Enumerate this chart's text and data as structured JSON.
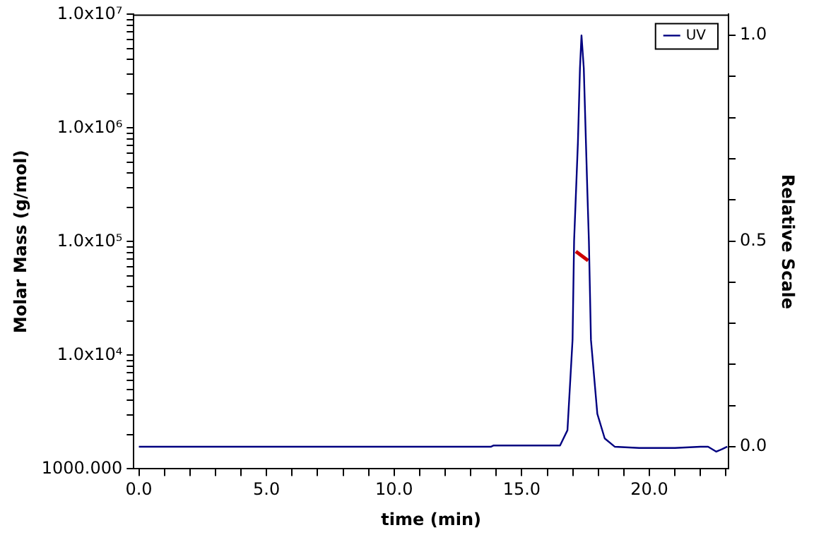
{
  "chart_data": {
    "type": "line",
    "xlabel": "time (min)",
    "ylabel": "Molar Mass (g/mol)",
    "y2label": "Relative Scale",
    "xlim": [
      -0.2,
      23.1
    ],
    "xticks": [
      {
        "value": 0,
        "label": "0.0"
      },
      {
        "value": 1,
        "label": null
      },
      {
        "value": 2,
        "label": null
      },
      {
        "value": 3,
        "label": null
      },
      {
        "value": 4,
        "label": null
      },
      {
        "value": 5,
        "label": "5.0"
      },
      {
        "value": 6,
        "label": null
      },
      {
        "value": 7,
        "label": null
      },
      {
        "value": 8,
        "label": null
      },
      {
        "value": 9,
        "label": null
      },
      {
        "value": 10,
        "label": "10.0"
      },
      {
        "value": 11,
        "label": null
      },
      {
        "value": 12,
        "label": null
      },
      {
        "value": 13,
        "label": null
      },
      {
        "value": 14,
        "label": null
      },
      {
        "value": 15,
        "label": "15.0"
      },
      {
        "value": 16,
        "label": null
      },
      {
        "value": 17,
        "label": null
      },
      {
        "value": 18,
        "label": null
      },
      {
        "value": 19,
        "label": null
      },
      {
        "value": 20,
        "label": "20.0"
      },
      {
        "value": 21,
        "label": null
      },
      {
        "value": 22,
        "label": null
      },
      {
        "value": 23,
        "label": null
      }
    ],
    "log": "y",
    "ylim": [
      1000,
      10000000
    ],
    "yticks": [
      {
        "value": 1000,
        "label": "1000.000"
      },
      {
        "value": 2000,
        "label": null
      },
      {
        "value": 3000,
        "label": null
      },
      {
        "value": 4000,
        "label": null
      },
      {
        "value": 5000,
        "label": null
      },
      {
        "value": 6000,
        "label": null
      },
      {
        "value": 7000,
        "label": null
      },
      {
        "value": 8000,
        "label": null
      },
      {
        "value": 9000,
        "label": null
      },
      {
        "value": 10000,
        "label": "1.0x10⁴"
      },
      {
        "value": 20000,
        "label": null
      },
      {
        "value": 30000,
        "label": null
      },
      {
        "value": 40000,
        "label": null
      },
      {
        "value": 50000,
        "label": null
      },
      {
        "value": 60000,
        "label": null
      },
      {
        "value": 70000,
        "label": null
      },
      {
        "value": 80000,
        "label": null
      },
      {
        "value": 90000,
        "label": null
      },
      {
        "value": 100000,
        "label": "1.0x10⁵"
      },
      {
        "value": 200000,
        "label": null
      },
      {
        "value": 300000,
        "label": null
      },
      {
        "value": 400000,
        "label": null
      },
      {
        "value": 500000,
        "label": null
      },
      {
        "value": 600000,
        "label": null
      },
      {
        "value": 700000,
        "label": null
      },
      {
        "value": 800000,
        "label": null
      },
      {
        "value": 900000,
        "label": null
      },
      {
        "value": 1000000,
        "label": "1.0x10⁶"
      },
      {
        "value": 2000000,
        "label": null
      },
      {
        "value": 3000000,
        "label": null
      },
      {
        "value": 4000000,
        "label": null
      },
      {
        "value": 5000000,
        "label": null
      },
      {
        "value": 6000000,
        "label": null
      },
      {
        "value": 7000000,
        "label": null
      },
      {
        "value": 8000000,
        "label": null
      },
      {
        "value": 9000000,
        "label": null
      },
      {
        "value": 10000000,
        "label": "1.0x10⁷"
      }
    ],
    "y2lim": [
      -0.054,
      1.051
    ],
    "y2ticks": [
      {
        "value": 0,
        "label": "0.0"
      },
      {
        "value": 0.1,
        "label": null
      },
      {
        "value": 0.2,
        "label": null
      },
      {
        "value": 0.3,
        "label": null
      },
      {
        "value": 0.4,
        "label": null
      },
      {
        "value": 0.5,
        "label": "0.5"
      },
      {
        "value": 0.6,
        "label": null
      },
      {
        "value": 0.7,
        "label": null
      },
      {
        "value": 0.8,
        "label": null
      },
      {
        "value": 0.9,
        "label": null
      },
      {
        "value": 1,
        "label": "1.0"
      }
    ],
    "grid": false,
    "legend": "top right",
    "marker": "none",
    "line_style": "solid",
    "series": [
      {
        "name": "UV",
        "color": "#000080",
        "axis": "y2",
        "x": [
          0,
          5,
          10,
          13.8,
          13.9,
          16.5,
          16.79,
          16.99,
          17.05,
          17.2,
          17.28,
          17.34,
          17.43,
          17.57,
          17.63,
          17.71,
          17.96,
          18.25,
          18.64,
          19.6,
          21.0,
          22.0,
          22.3,
          22.62,
          22.85,
          23.05
        ],
        "values": [
          0,
          0,
          0,
          0,
          0.003,
          0.003,
          0.04,
          0.26,
          0.5,
          0.74,
          0.92,
          1.0,
          0.92,
          0.62,
          0.5,
          0.26,
          0.08,
          0.02,
          0.0,
          -0.003,
          -0.003,
          0.0,
          0.0,
          -0.012,
          -0.006,
          0.0
        ]
      },
      {
        "color": "#cc0000",
        "x": [
          17.12,
          17.35,
          17.6
        ],
        "values": [
          82000,
          75000,
          68000
        ]
      }
    ]
  }
}
